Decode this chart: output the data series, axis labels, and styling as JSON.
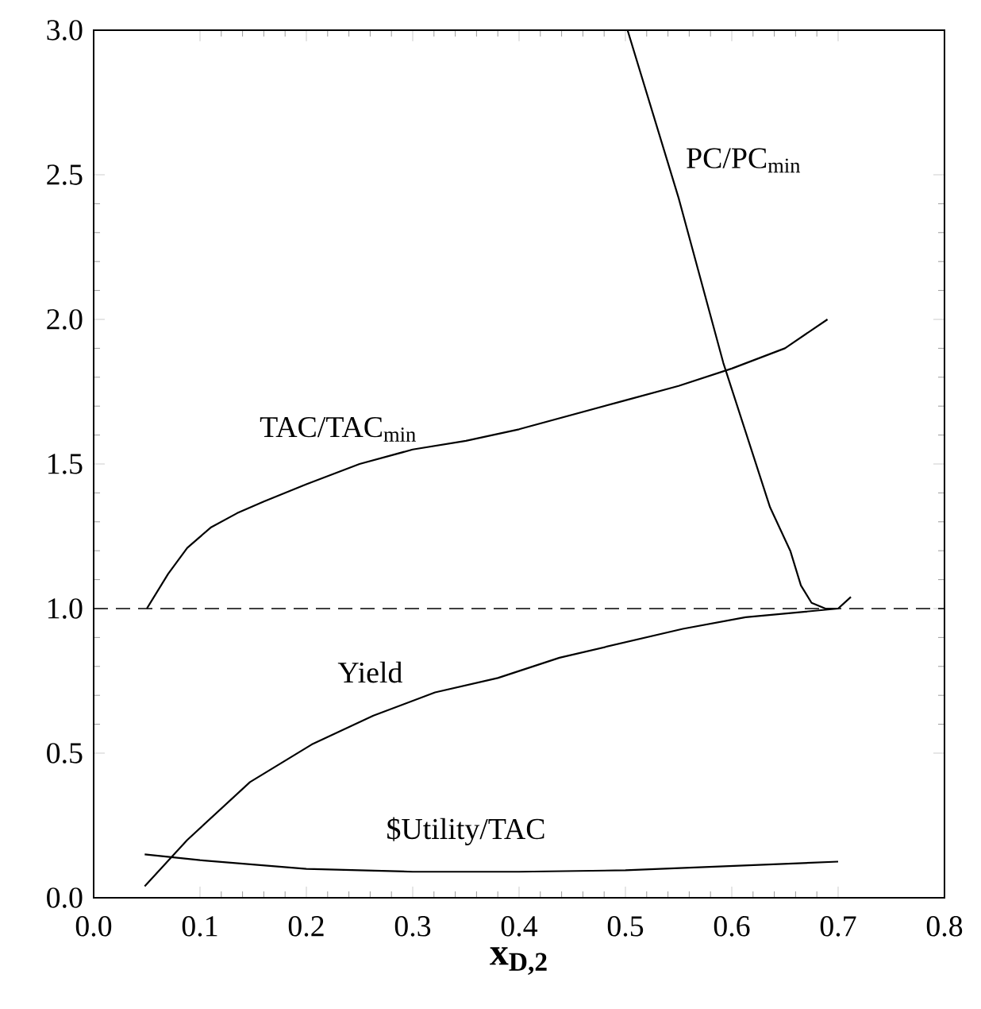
{
  "chart_data": {
    "type": "line",
    "xlabel": "x$_{D,2}$",
    "xlim": [
      0,
      0.8
    ],
    "ylim": [
      0,
      3
    ],
    "xticks": [
      {
        "value": 0,
        "label": "0.0"
      },
      {
        "value": 0.1,
        "label": "0.1"
      },
      {
        "value": 0.2,
        "label": "0.2"
      },
      {
        "value": 0.3,
        "label": "0.3"
      },
      {
        "value": 0.4,
        "label": "0.4"
      },
      {
        "value": 0.5,
        "label": "0.5"
      },
      {
        "value": 0.6,
        "label": "0.6"
      },
      {
        "value": 0.7,
        "label": "0.7"
      },
      {
        "value": 0.8,
        "label": "0.8"
      }
    ],
    "yticks": [
      {
        "value": 0,
        "label": "0.0"
      },
      {
        "value": 0.5,
        "label": "0.5"
      },
      {
        "value": 1,
        "label": "1.0"
      },
      {
        "value": 1.5,
        "label": "1.5"
      },
      {
        "value": 2,
        "label": "2.0"
      },
      {
        "value": 2.5,
        "label": "2.5"
      },
      {
        "value": 3,
        "label": "3.0"
      }
    ],
    "grid": false,
    "legend": false,
    "marker": "none",
    "line_style": "solid",
    "series": [
      {
        "name": "PC/PC$_{min}$",
        "color": "#000000",
        "x": [
          0.502,
          0.55,
          0.592,
          0.636,
          0.655,
          0.665,
          0.675,
          0.688,
          0.7,
          0.712
        ],
        "values": [
          3.0,
          2.42,
          1.85,
          1.35,
          1.2,
          1.08,
          1.02,
          1.0,
          1.0,
          1.04
        ]
      },
      {
        "name": "TAC/TAC$_{min}$",
        "color": "#000000",
        "x": [
          0.05,
          0.07,
          0.088,
          0.11,
          0.135,
          0.16,
          0.2,
          0.25,
          0.3,
          0.35,
          0.4,
          0.45,
          0.5,
          0.55,
          0.6,
          0.65,
          0.69
        ],
        "values": [
          1.0,
          1.12,
          1.21,
          1.28,
          1.33,
          1.37,
          1.43,
          1.5,
          1.55,
          1.58,
          1.62,
          1.67,
          1.72,
          1.77,
          1.83,
          1.9,
          2.0
        ]
      },
      {
        "name": "Yield",
        "color": "#000000",
        "x": [
          0.048,
          0.088,
          0.147,
          0.205,
          0.263,
          0.321,
          0.38,
          0.438,
          0.496,
          0.554,
          0.613,
          0.671,
          0.7
        ],
        "values": [
          0.04,
          0.2,
          0.4,
          0.53,
          0.63,
          0.71,
          0.76,
          0.83,
          0.88,
          0.93,
          0.97,
          0.99,
          1.0
        ]
      },
      {
        "name": "$Utility/TAC",
        "color": "#000000",
        "x": [
          0.048,
          0.1,
          0.2,
          0.3,
          0.4,
          0.5,
          0.6,
          0.7
        ],
        "values": [
          0.15,
          0.13,
          0.1,
          0.09,
          0.09,
          0.095,
          0.11,
          0.125
        ]
      }
    ],
    "ref_lines": [
      {
        "axis": "y",
        "value": 1,
        "line_style": "dashed",
        "color": "#000000"
      }
    ]
  }
}
